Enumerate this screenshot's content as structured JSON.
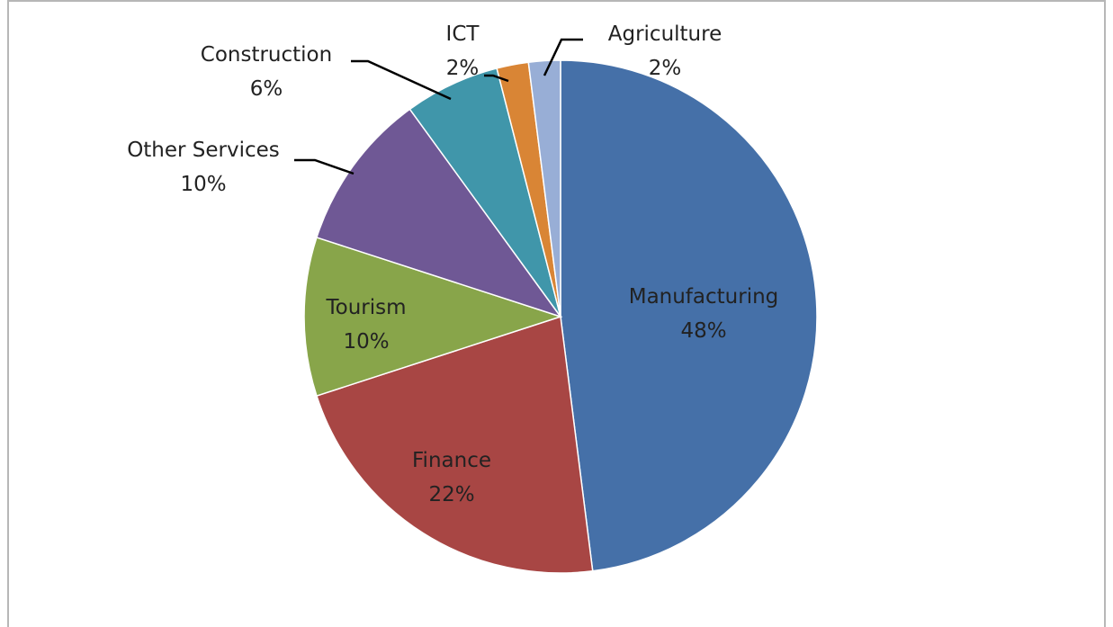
{
  "chart_data": {
    "type": "pie",
    "title": "",
    "start_angle_deg": 0,
    "direction": "clockwise",
    "legend": "none",
    "slices": [
      {
        "name": "Manufacturing",
        "value": 48,
        "label": "48%",
        "color": "#4570a8"
      },
      {
        "name": "Finance",
        "value": 22,
        "label": "22%",
        "color": "#a84644"
      },
      {
        "name": "Tourism",
        "value": 10,
        "label": "10%",
        "color": "#88a54a"
      },
      {
        "name": "Other Services",
        "value": 10,
        "label": "10%",
        "color": "#6f5895"
      },
      {
        "name": "Construction",
        "value": 6,
        "label": "6%",
        "color": "#4096aa"
      },
      {
        "name": "ICT",
        "value": 2,
        "label": "2%",
        "color": "#d98535"
      },
      {
        "name": "Agriculture",
        "value": 2,
        "label": "2%",
        "color": "#98aed6"
      }
    ]
  }
}
